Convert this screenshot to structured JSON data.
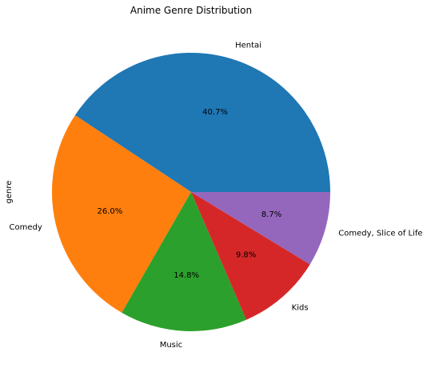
{
  "chart_data": {
    "type": "pie",
    "title": "Anime Genre Distribution",
    "ylabel": "genre",
    "categories": [
      "Hentai",
      "Comedy",
      "Music",
      "Kids",
      "Comedy, Slice of Life"
    ],
    "values": [
      40.7,
      26.0,
      14.8,
      9.8,
      8.7
    ],
    "percent_labels": [
      "40.7%",
      "26.0%",
      "14.8%",
      "9.8%",
      "8.7%"
    ],
    "colors": [
      "#1f77b4",
      "#ff7f0e",
      "#2ca02c",
      "#d62728",
      "#9467bd"
    ],
    "start_angle_deg": 0,
    "direction": "counterclockwise",
    "legend": "none"
  }
}
